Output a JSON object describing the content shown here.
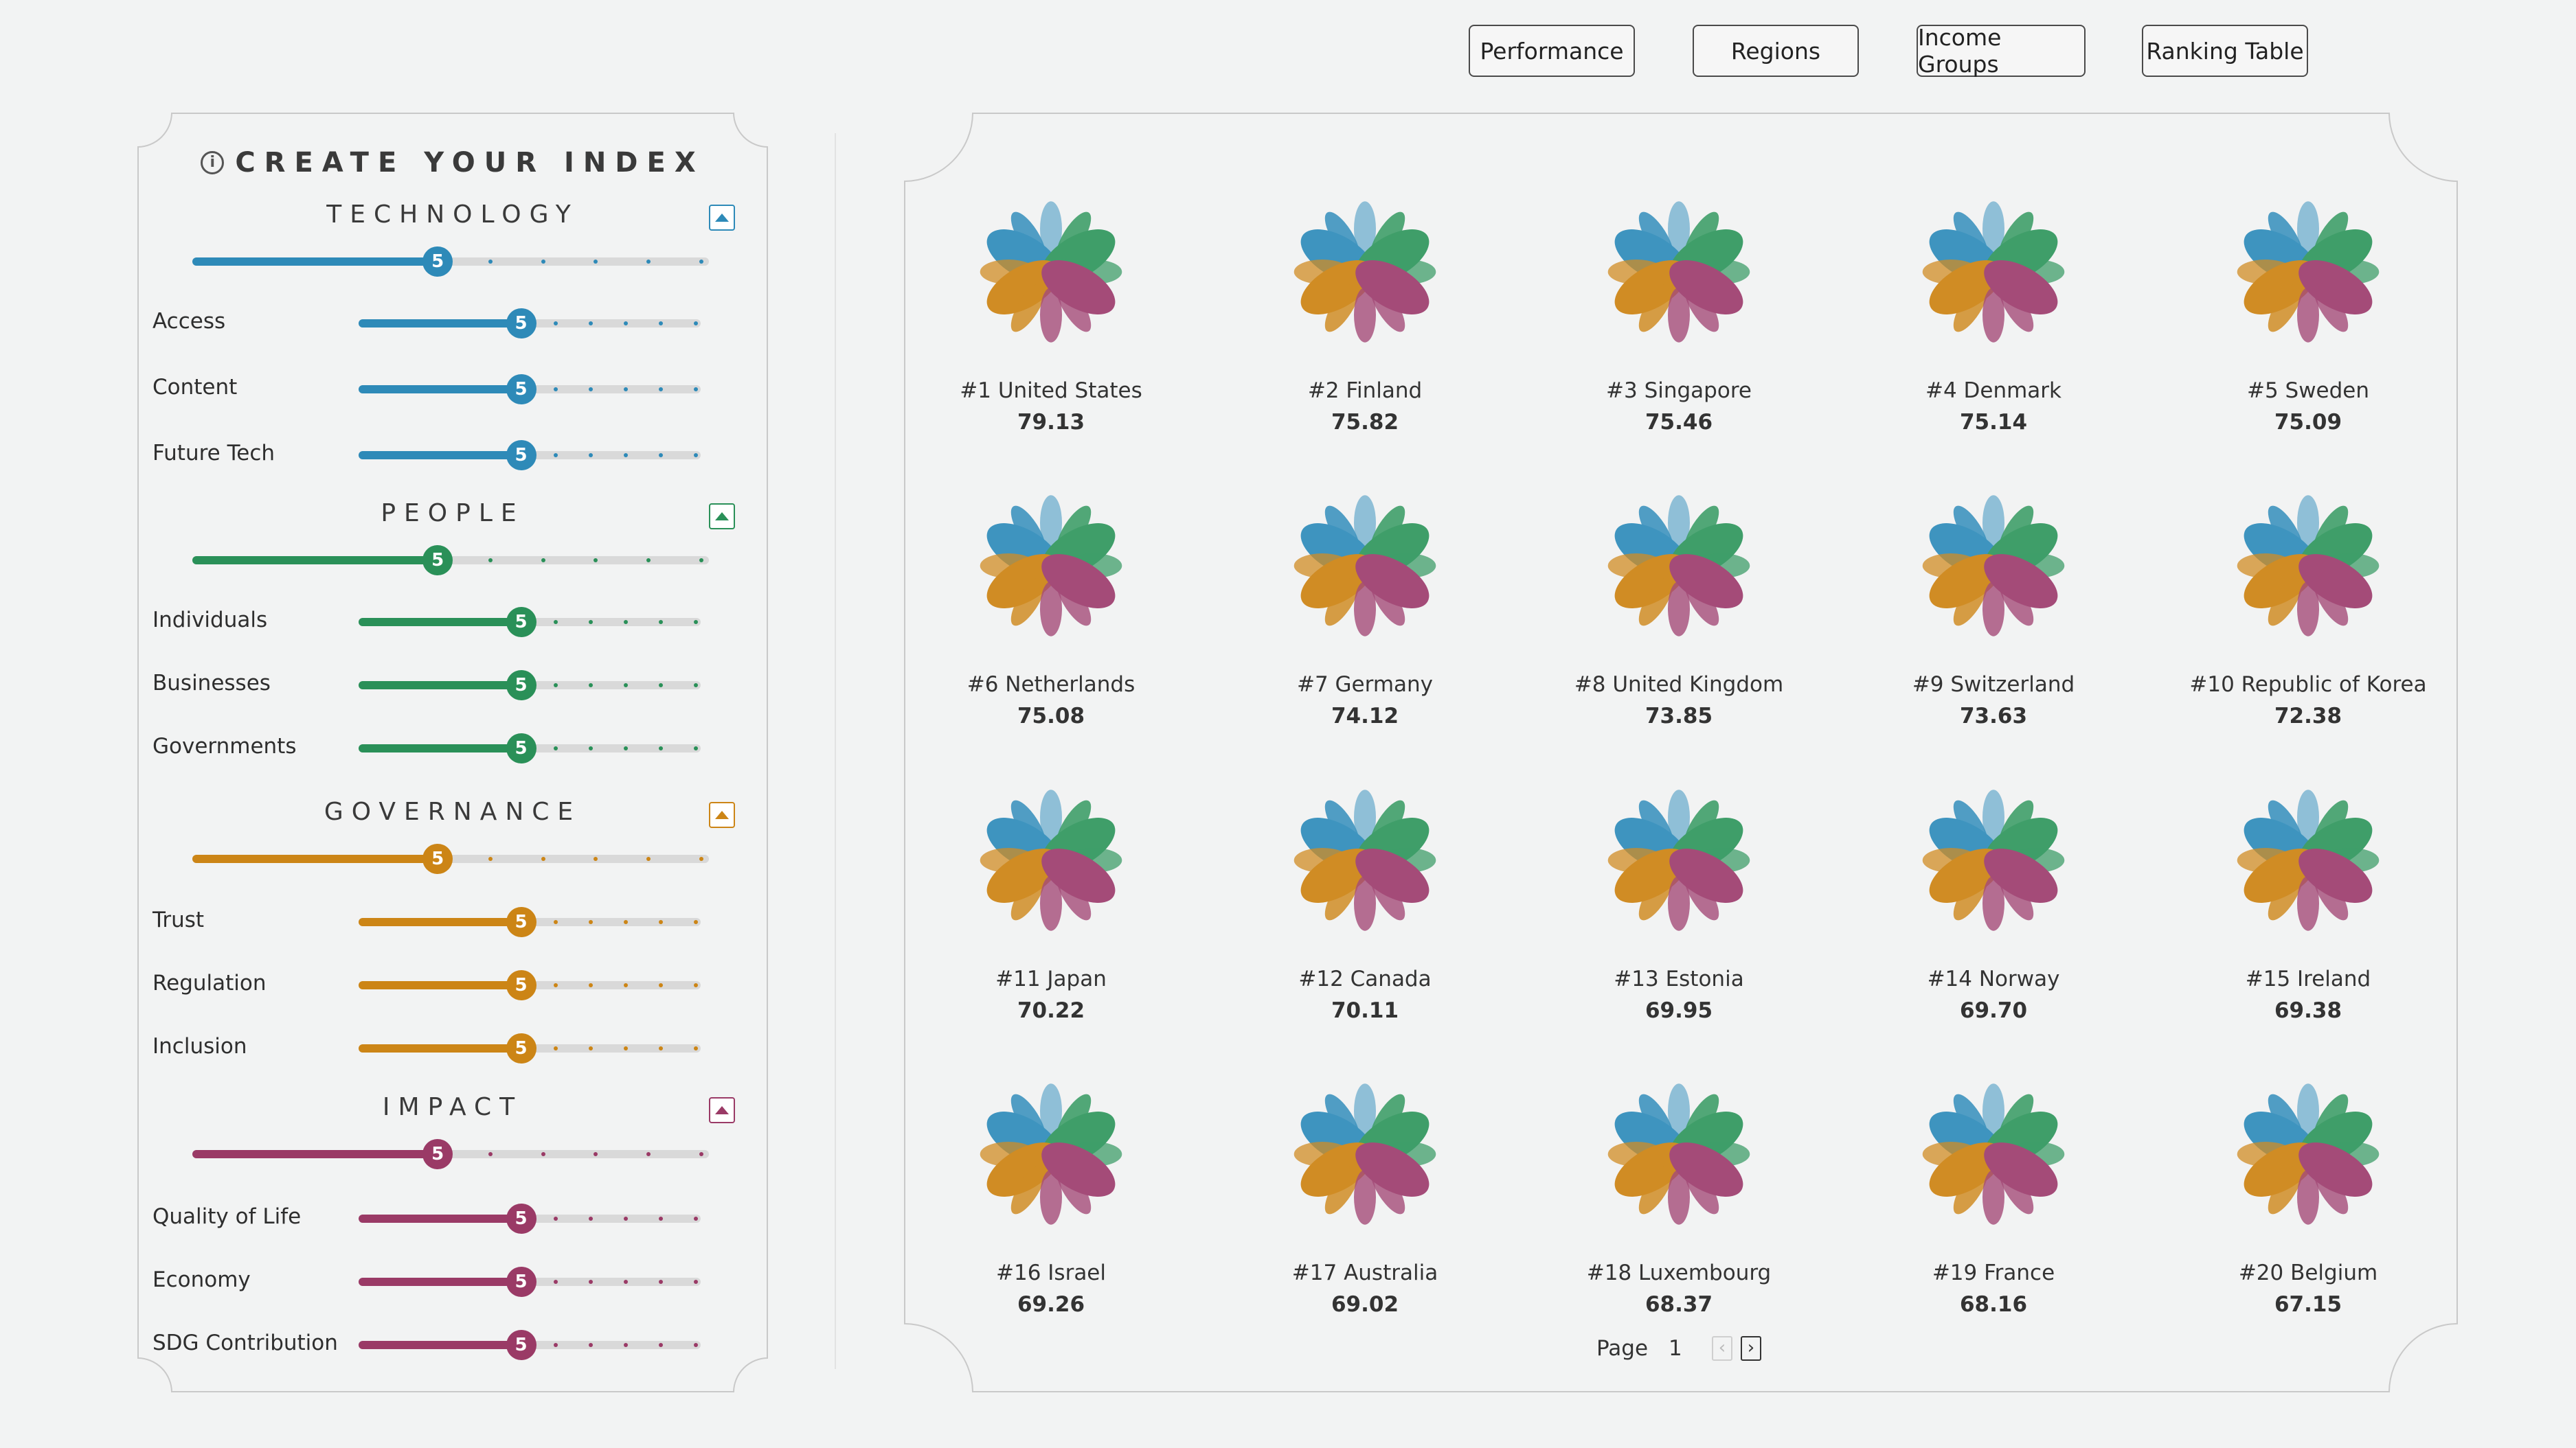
{
  "nav": {
    "buttons": [
      {
        "label": "Performance"
      },
      {
        "label": "Regions"
      },
      {
        "label": "Income Groups"
      },
      {
        "label": "Ranking Table"
      }
    ]
  },
  "controls": {
    "title": "CREATE YOUR INDEX",
    "info_icon": "info-icon",
    "sections": [
      {
        "title": "TECHNOLOGY",
        "color": "#2e8ab8",
        "value": 5,
        "subs": [
          {
            "label": "Access",
            "value": 5
          },
          {
            "label": "Content",
            "value": 5
          },
          {
            "label": "Future Tech",
            "value": 5
          }
        ]
      },
      {
        "title": "PEOPLE",
        "color": "#2a9058",
        "value": 5,
        "subs": [
          {
            "label": "Individuals",
            "value": 5
          },
          {
            "label": "Businesses",
            "value": 5
          },
          {
            "label": "Governments",
            "value": 5
          }
        ]
      },
      {
        "title": "GOVERNANCE",
        "color": "#cc8516",
        "value": 5,
        "subs": [
          {
            "label": "Trust",
            "value": 5
          },
          {
            "label": "Regulation",
            "value": 5
          },
          {
            "label": "Inclusion",
            "value": 5
          }
        ]
      },
      {
        "title": "IMPACT",
        "color": "#9a3a66",
        "value": 5,
        "subs": [
          {
            "label": "Quality of Life",
            "value": 5
          },
          {
            "label": "Economy",
            "value": 5
          },
          {
            "label": "SDG Contribution",
            "value": 5
          }
        ]
      }
    ]
  },
  "ranking": {
    "countries": [
      {
        "name": "#1 United States",
        "score": "79.13"
      },
      {
        "name": "#2 Finland",
        "score": "75.82"
      },
      {
        "name": "#3 Singapore",
        "score": "75.46"
      },
      {
        "name": "#4 Denmark",
        "score": "75.14"
      },
      {
        "name": "#5 Sweden",
        "score": "75.09"
      },
      {
        "name": "#6 Netherlands",
        "score": "75.08"
      },
      {
        "name": "#7 Germany",
        "score": "74.12"
      },
      {
        "name": "#8 United Kingdom",
        "score": "73.85"
      },
      {
        "name": "#9 Switzerland",
        "score": "73.63"
      },
      {
        "name": "#10 Republic of Korea",
        "score": "72.38"
      },
      {
        "name": "#11 Japan",
        "score": "70.22"
      },
      {
        "name": "#12 Canada",
        "score": "70.11"
      },
      {
        "name": "#13 Estonia",
        "score": "69.95"
      },
      {
        "name": "#14 Norway",
        "score": "69.70"
      },
      {
        "name": "#15 Ireland",
        "score": "69.38"
      },
      {
        "name": "#16 Israel",
        "score": "69.26"
      },
      {
        "name": "#17 Australia",
        "score": "69.02"
      },
      {
        "name": "#18 Luxembourg",
        "score": "68.37"
      },
      {
        "name": "#19 France",
        "score": "68.16"
      },
      {
        "name": "#20 Belgium",
        "score": "67.15"
      }
    ],
    "flower_colors": {
      "technology": "#3e94bf",
      "people": "#3f9e69",
      "governance": "#d08c24",
      "impact": "#a44b78"
    },
    "pager": {
      "label": "Page",
      "value": "1"
    }
  }
}
